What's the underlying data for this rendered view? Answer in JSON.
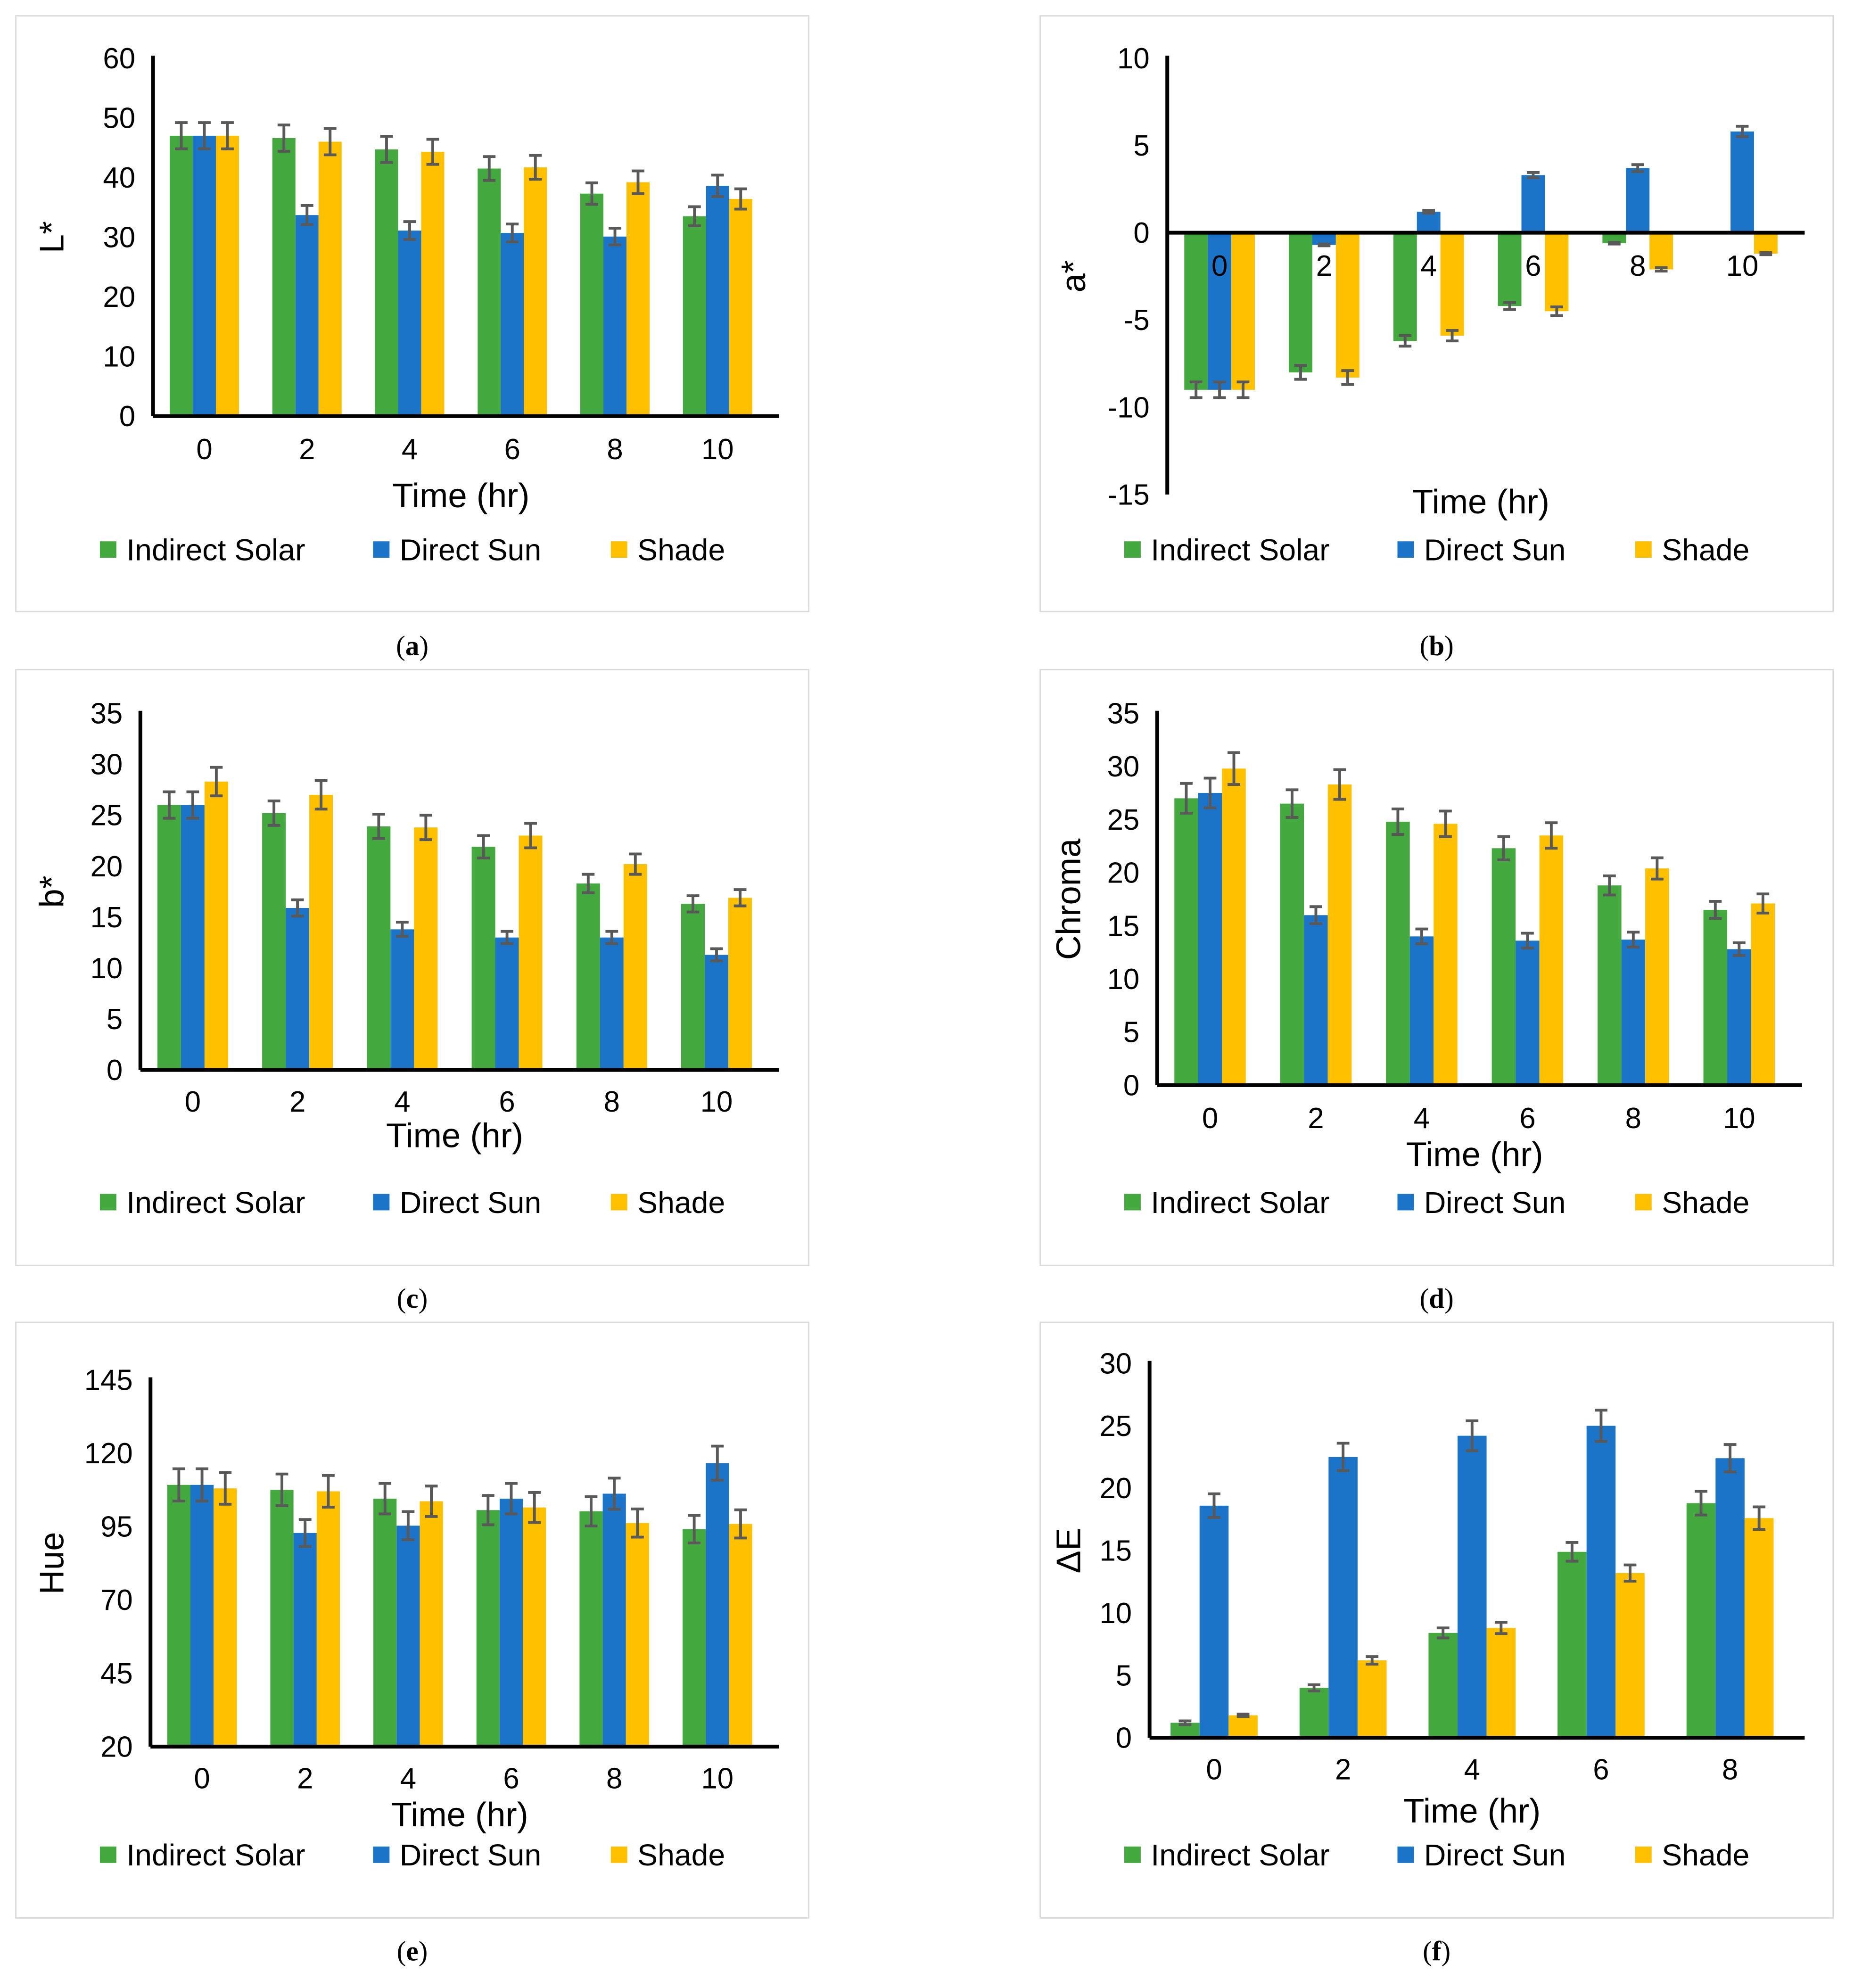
{
  "legend": [
    "Indirect Solar",
    "Direct Sun",
    "Shade"
  ],
  "colors": {
    "Indirect Solar": "#43a83e",
    "Direct Sun": "#1c74c8",
    "Shade": "#ffc000",
    "error": "#595959",
    "axis": "#000000"
  },
  "chart_data": [
    {
      "id": "a",
      "caption": "a",
      "type": "bar",
      "title": "",
      "xlabel": "Time (hr)",
      "ylabel": "L*",
      "categories": [
        "0",
        "2",
        "4",
        "6",
        "8",
        "10"
      ],
      "ylim": [
        0,
        60
      ],
      "yticks": [
        0,
        10,
        20,
        30,
        40,
        50,
        60
      ],
      "series": [
        {
          "name": "Indirect Solar",
          "values": [
            47,
            46.6,
            44.7,
            41.5,
            37.3,
            33.5
          ],
          "errors": [
            2.2,
            2.2,
            2.2,
            2,
            1.8,
            1.6
          ]
        },
        {
          "name": "Direct Sun",
          "values": [
            47,
            33.7,
            31.1,
            30.7,
            30.1,
            38.6
          ],
          "errors": [
            2.2,
            1.6,
            1.5,
            1.5,
            1.4,
            1.8
          ]
        },
        {
          "name": "Shade",
          "values": [
            47,
            46,
            44.3,
            41.7,
            39.2,
            36.4
          ],
          "errors": [
            2.2,
            2.2,
            2.1,
            2,
            1.9,
            1.7
          ]
        }
      ]
    },
    {
      "id": "b",
      "caption": "b",
      "type": "bar",
      "title": "",
      "xlabel": "Time (hr)",
      "ylabel": "a*",
      "categories": [
        "0",
        "2",
        "4",
        "6",
        "8",
        "10"
      ],
      "ylim": [
        -15,
        10
      ],
      "yticks": [
        -15,
        -10,
        -5,
        0,
        5,
        10
      ],
      "series": [
        {
          "name": "Indirect Solar",
          "values": [
            -9,
            -8,
            -6.2,
            -4.2,
            -0.6,
            0
          ],
          "errors": [
            0.45,
            0.4,
            0.3,
            0.2,
            0.05,
            0
          ]
        },
        {
          "name": "Direct Sun",
          "values": [
            -9,
            -0.7,
            1.2,
            3.3,
            3.7,
            5.8
          ],
          "errors": [
            0.45,
            0.05,
            0.08,
            0.15,
            0.2,
            0.3
          ]
        },
        {
          "name": "Shade",
          "values": [
            -9,
            -8.3,
            -5.9,
            -4.5,
            -2.1,
            -1.2
          ],
          "errors": [
            0.45,
            0.4,
            0.3,
            0.25,
            0.1,
            0.06
          ]
        }
      ]
    },
    {
      "id": "c",
      "caption": "c",
      "type": "bar",
      "title": "",
      "xlabel": "Time (hr)",
      "ylabel": "b*",
      "categories": [
        "0",
        "2",
        "4",
        "6",
        "8",
        "10"
      ],
      "ylim": [
        0,
        35
      ],
      "yticks": [
        0,
        5,
        10,
        15,
        20,
        25,
        30,
        35
      ],
      "series": [
        {
          "name": "Indirect Solar",
          "values": [
            26,
            25.2,
            23.9,
            21.9,
            18.3,
            16.3
          ],
          "errors": [
            1.3,
            1.2,
            1.2,
            1.1,
            0.9,
            0.8
          ]
        },
        {
          "name": "Direct Sun",
          "values": [
            26,
            15.9,
            13.8,
            13,
            13,
            11.3
          ],
          "errors": [
            1.3,
            0.8,
            0.7,
            0.6,
            0.6,
            0.6
          ]
        },
        {
          "name": "Shade",
          "values": [
            28.3,
            27,
            23.8,
            23,
            20.2,
            16.9
          ],
          "errors": [
            1.4,
            1.4,
            1.2,
            1.2,
            1,
            0.8
          ]
        }
      ]
    },
    {
      "id": "d",
      "caption": "d",
      "type": "bar",
      "title": "",
      "xlabel": "Time (hr)",
      "ylabel": "Chroma",
      "categories": [
        "0",
        "2",
        "4",
        "6",
        "8",
        "10"
      ],
      "ylim": [
        0,
        35
      ],
      "yticks": [
        0,
        5,
        10,
        15,
        20,
        25,
        30,
        35
      ],
      "series": [
        {
          "name": "Indirect Solar",
          "values": [
            27,
            26.5,
            24.8,
            22.3,
            18.8,
            16.5
          ],
          "errors": [
            1.4,
            1.3,
            1.2,
            1.1,
            0.9,
            0.8
          ]
        },
        {
          "name": "Direct Sun",
          "values": [
            27.5,
            16,
            14,
            13.6,
            13.7,
            12.8
          ],
          "errors": [
            1.4,
            0.8,
            0.7,
            0.7,
            0.7,
            0.6
          ]
        },
        {
          "name": "Shade",
          "values": [
            29.8,
            28.3,
            24.6,
            23.5,
            20.4,
            17.1
          ],
          "errors": [
            1.5,
            1.4,
            1.2,
            1.2,
            1,
            0.9
          ]
        }
      ]
    },
    {
      "id": "e",
      "caption": "e",
      "type": "bar",
      "title": "",
      "xlabel": "Time (hr)",
      "ylabel": "Hue",
      "categories": [
        "0",
        "2",
        "4",
        "6",
        "8",
        "10"
      ],
      "ylim": [
        20,
        145
      ],
      "yticks": [
        20,
        45,
        70,
        95,
        120,
        145
      ],
      "series": [
        {
          "name": "Indirect Solar",
          "values": [
            109.2,
            107.5,
            104.5,
            100.6,
            100.2,
            94.1
          ],
          "errors": [
            5.5,
            5.4,
            5.2,
            5,
            5,
            4.7
          ]
        },
        {
          "name": "Direct Sun",
          "values": [
            109.2,
            92.8,
            95.3,
            104.5,
            106.2,
            116.6
          ],
          "errors": [
            5.5,
            4.6,
            4.8,
            5.2,
            5.3,
            5.8
          ]
        },
        {
          "name": "Shade",
          "values": [
            108,
            107,
            103.6,
            101.5,
            96.2,
            95.9
          ],
          "errors": [
            5.4,
            5.4,
            5.2,
            5.1,
            4.8,
            4.8
          ]
        }
      ]
    },
    {
      "id": "f",
      "caption": "f",
      "type": "bar",
      "title": "",
      "xlabel": "Time (hr)",
      "ylabel": "ΔE",
      "categories": [
        "0",
        "2",
        "4",
        "6",
        "8"
      ],
      "ylim": [
        0,
        30
      ],
      "yticks": [
        0,
        5,
        10,
        15,
        20,
        25,
        30
      ],
      "series": [
        {
          "name": "Indirect Solar",
          "values": [
            1.2,
            4,
            8.4,
            14.9,
            18.8
          ],
          "errors": [
            0.15,
            0.25,
            0.4,
            0.75,
            0.95
          ]
        },
        {
          "name": "Direct Sun",
          "values": [
            18.6,
            22.5,
            24.2,
            25,
            22.4
          ],
          "errors": [
            0.95,
            1.1,
            1.2,
            1.25,
            1.1
          ]
        },
        {
          "name": "Shade",
          "values": [
            1.8,
            6.2,
            8.8,
            13.2,
            17.6
          ],
          "errors": [
            0.1,
            0.3,
            0.45,
            0.65,
            0.9
          ]
        }
      ]
    }
  ]
}
